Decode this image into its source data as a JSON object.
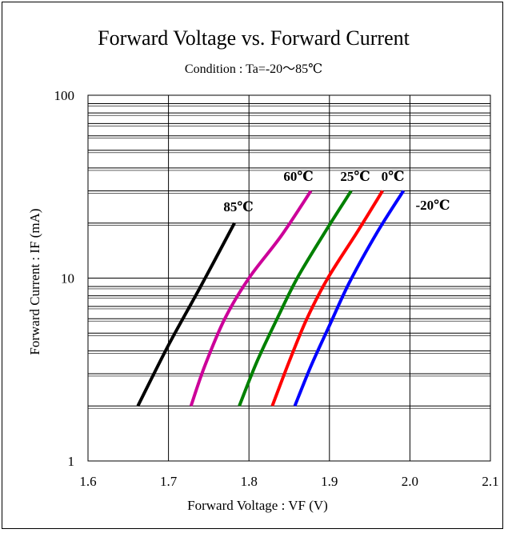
{
  "chart_data": {
    "type": "line",
    "title": "Forward Voltage vs. Forward Current",
    "subtitle": "Condition : Ta=-20～85℃",
    "xlabel": "Forward Voltage : VF (V)",
    "ylabel": "Forward Current : IF (mA)",
    "xlim": [
      1.6,
      2.1
    ],
    "ylim": [
      1,
      100
    ],
    "yscale": "log",
    "x_ticks": [
      "1.6",
      "1.7",
      "1.8",
      "1.9",
      "2.0",
      "2.1"
    ],
    "y_ticks": [
      "1",
      "10",
      "100"
    ],
    "grid": true,
    "series": [
      {
        "name": "85℃",
        "color": "#000000",
        "points": [
          [
            1.662,
            2
          ],
          [
            1.7,
            4.3
          ],
          [
            1.74,
            9
          ],
          [
            1.782,
            20
          ]
        ]
      },
      {
        "name": "60℃",
        "color": "#cc0099",
        "points": [
          [
            1.728,
            2
          ],
          [
            1.745,
            3.3
          ],
          [
            1.77,
            6
          ],
          [
            1.8,
            10
          ],
          [
            1.84,
            17
          ],
          [
            1.877,
            30
          ]
        ]
      },
      {
        "name": "25℃",
        "color": "#008000",
        "points": [
          [
            1.788,
            2
          ],
          [
            1.81,
            3.5
          ],
          [
            1.835,
            6
          ],
          [
            1.86,
            10
          ],
          [
            1.895,
            18
          ],
          [
            1.927,
            30
          ]
        ]
      },
      {
        "name": "0℃",
        "color": "#ff0000",
        "points": [
          [
            1.829,
            2
          ],
          [
            1.85,
            3.5
          ],
          [
            1.872,
            6
          ],
          [
            1.898,
            10
          ],
          [
            1.935,
            18
          ],
          [
            1.966,
            30
          ]
        ]
      },
      {
        "name": "-20℃",
        "color": "#0000ff",
        "points": [
          [
            1.857,
            2
          ],
          [
            1.877,
            3.3
          ],
          [
            1.9,
            5.5
          ],
          [
            1.925,
            9.5
          ],
          [
            1.96,
            18
          ],
          [
            1.992,
            30
          ]
        ]
      }
    ]
  }
}
